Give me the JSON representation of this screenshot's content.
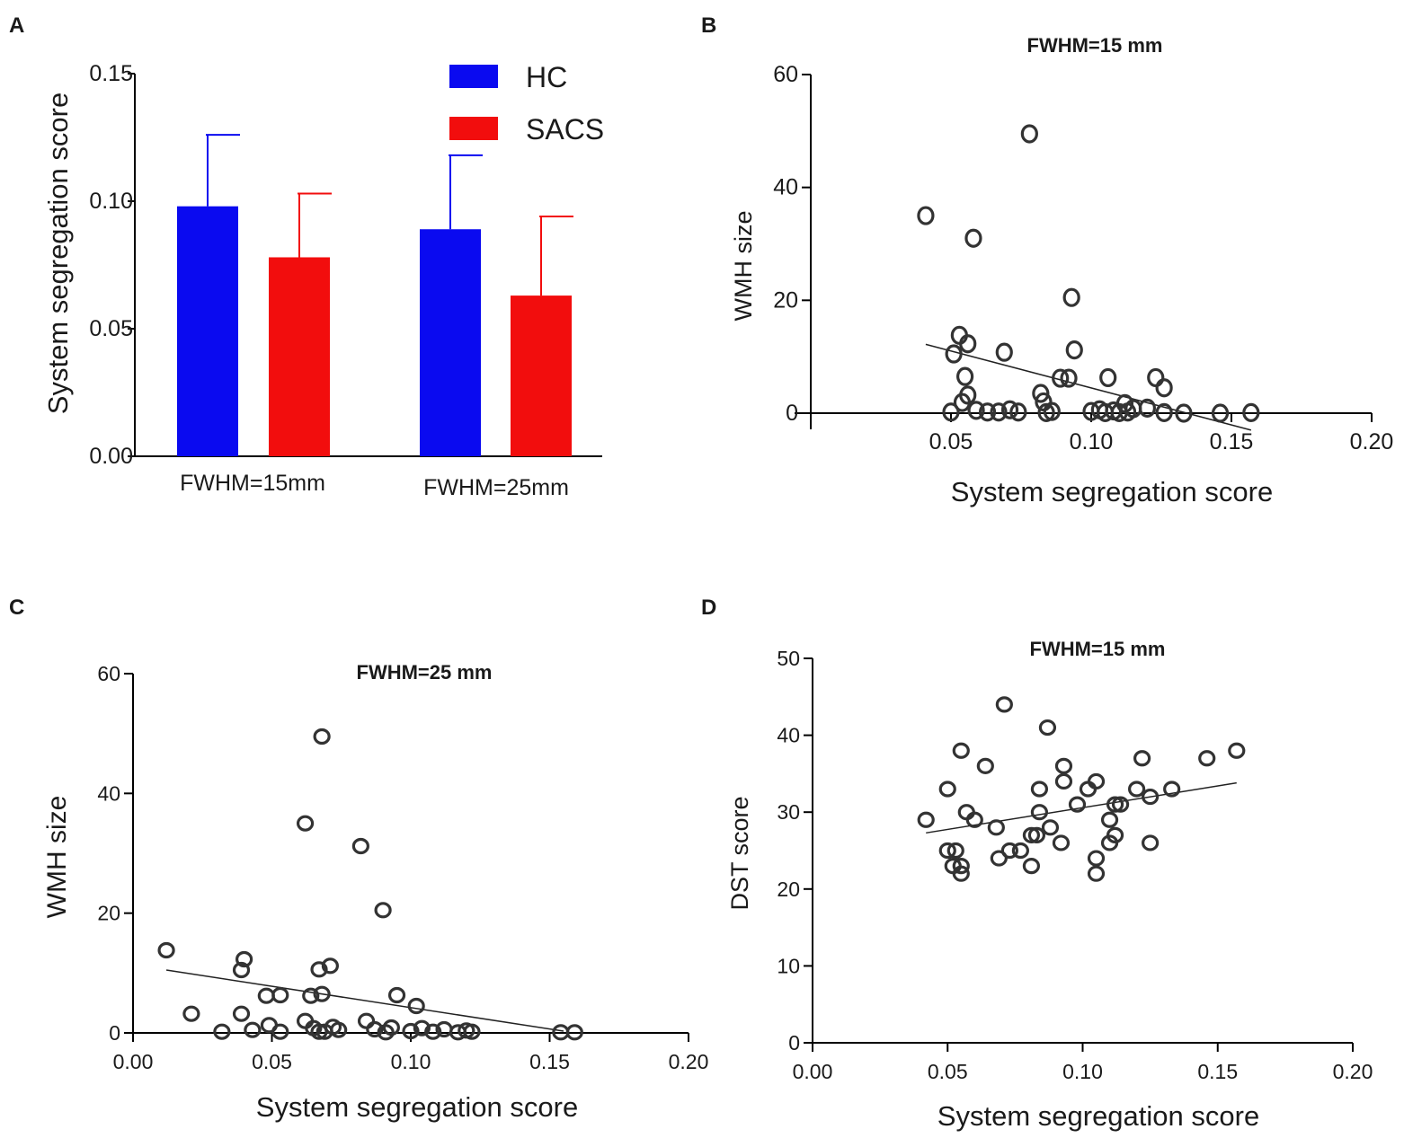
{
  "colors": {
    "hc": "#0a0af0",
    "sacs": "#f20d0d",
    "point_stroke": "#333333",
    "axis": "#000000"
  },
  "chart_data": [
    {
      "id": "A",
      "letter": "A",
      "type": "bar",
      "title": "",
      "categories": [
        "FWHM=15mm",
        "FWHM=25mm"
      ],
      "series": [
        {
          "name": "HC",
          "color": "#0a0af0",
          "values": [
            0.098,
            0.089
          ],
          "errors": [
            0.028,
            0.029
          ]
        },
        {
          "name": "SACS",
          "color": "#f20d0d",
          "values": [
            0.078,
            0.063
          ],
          "errors": [
            0.025,
            0.031
          ]
        }
      ],
      "xlabel": "",
      "ylabel": "System segregation score",
      "ylim": [
        0,
        0.15
      ],
      "yticks": [
        "0.00",
        "0.05",
        "0.10",
        "0.15"
      ],
      "legend": "top-right"
    },
    {
      "id": "B",
      "letter": "B",
      "type": "scatter",
      "title": "FWHM=15 mm",
      "xlabel": "System segregation score",
      "ylabel": "WMH size",
      "xlim": [
        0,
        0.2
      ],
      "ylim": [
        0,
        60
      ],
      "xticks": [
        "0.05",
        "0.10",
        "0.15",
        "0.20"
      ],
      "yticks": [
        "0",
        "20",
        "40",
        "60"
      ],
      "fit": {
        "x1": 0.041,
        "y1": 12.2,
        "x2": 0.157,
        "y2": -3.0
      },
      "points": [
        [
          0.078,
          49.5
        ],
        [
          0.041,
          35.0
        ],
        [
          0.058,
          31.0
        ],
        [
          0.093,
          20.5
        ],
        [
          0.053,
          13.8
        ],
        [
          0.056,
          12.3
        ],
        [
          0.051,
          10.5
        ],
        [
          0.069,
          10.8
        ],
        [
          0.094,
          11.2
        ],
        [
          0.055,
          6.5
        ],
        [
          0.089,
          6.2
        ],
        [
          0.092,
          6.2
        ],
        [
          0.106,
          6.3
        ],
        [
          0.123,
          6.3
        ],
        [
          0.126,
          4.5
        ],
        [
          0.056,
          3.2
        ],
        [
          0.054,
          1.9
        ],
        [
          0.082,
          3.5
        ],
        [
          0.083,
          2.0
        ],
        [
          0.05,
          0.2
        ],
        [
          0.059,
          0.5
        ],
        [
          0.063,
          0.2
        ],
        [
          0.067,
          0.2
        ],
        [
          0.071,
          0.6
        ],
        [
          0.074,
          0.2
        ],
        [
          0.084,
          0.1
        ],
        [
          0.086,
          0.3
        ],
        [
          0.1,
          0.3
        ],
        [
          0.103,
          0.6
        ],
        [
          0.105,
          0.1
        ],
        [
          0.108,
          0.4
        ],
        [
          0.11,
          0.1
        ],
        [
          0.112,
          1.7
        ],
        [
          0.113,
          0.2
        ],
        [
          0.115,
          0.8
        ],
        [
          0.12,
          0.9
        ],
        [
          0.126,
          0.1
        ],
        [
          0.133,
          0.0
        ],
        [
          0.146,
          0.0
        ],
        [
          0.157,
          0.1
        ]
      ]
    },
    {
      "id": "C",
      "letter": "C",
      "type": "scatter",
      "title": "FWHM=25 mm",
      "xlabel": "System segregation score",
      "ylabel": "WMH size",
      "xlim": [
        0,
        0.2
      ],
      "ylim": [
        0,
        60
      ],
      "xticks": [
        "0.00",
        "0.05",
        "0.10",
        "0.15",
        "0.20"
      ],
      "yticks": [
        "0",
        "20",
        "40",
        "60"
      ],
      "fit": {
        "x1": 0.012,
        "y1": 10.5,
        "x2": 0.155,
        "y2": 0.3
      },
      "points": [
        [
          0.068,
          49.5
        ],
        [
          0.062,
          35.0
        ],
        [
          0.082,
          31.2
        ],
        [
          0.09,
          20.5
        ],
        [
          0.012,
          13.8
        ],
        [
          0.04,
          12.3
        ],
        [
          0.039,
          10.5
        ],
        [
          0.067,
          10.6
        ],
        [
          0.071,
          11.2
        ],
        [
          0.048,
          6.2
        ],
        [
          0.053,
          6.3
        ],
        [
          0.064,
          6.2
        ],
        [
          0.068,
          6.5
        ],
        [
          0.095,
          6.3
        ],
        [
          0.102,
          4.5
        ],
        [
          0.021,
          3.2
        ],
        [
          0.039,
          3.2
        ],
        [
          0.062,
          2.0
        ],
        [
          0.084,
          2.0
        ],
        [
          0.032,
          0.2
        ],
        [
          0.043,
          0.5
        ],
        [
          0.049,
          1.3
        ],
        [
          0.053,
          0.2
        ],
        [
          0.065,
          0.8
        ],
        [
          0.067,
          0.2
        ],
        [
          0.069,
          0.2
        ],
        [
          0.072,
          1.0
        ],
        [
          0.074,
          0.5
        ],
        [
          0.087,
          0.6
        ],
        [
          0.091,
          0.1
        ],
        [
          0.093,
          0.9
        ],
        [
          0.1,
          0.3
        ],
        [
          0.104,
          0.8
        ],
        [
          0.108,
          0.2
        ],
        [
          0.112,
          0.6
        ],
        [
          0.117,
          0.1
        ],
        [
          0.12,
          0.4
        ],
        [
          0.122,
          0.2
        ],
        [
          0.154,
          0.1
        ],
        [
          0.159,
          0.1
        ]
      ]
    },
    {
      "id": "D",
      "letter": "D",
      "type": "scatter",
      "title": "FWHM=15 mm",
      "xlabel": "System segregation score",
      "ylabel": "DST score",
      "xlim": [
        0,
        0.2
      ],
      "ylim": [
        0,
        50
      ],
      "xticks": [
        "0.00",
        "0.05",
        "0.10",
        "0.15",
        "0.20"
      ],
      "yticks": [
        "0",
        "10",
        "20",
        "30",
        "40",
        "50"
      ],
      "fit": {
        "x1": 0.042,
        "y1": 27.3,
        "x2": 0.157,
        "y2": 33.8
      },
      "points": [
        [
          0.071,
          44
        ],
        [
          0.087,
          41
        ],
        [
          0.055,
          38
        ],
        [
          0.157,
          38
        ],
        [
          0.064,
          36
        ],
        [
          0.093,
          36
        ],
        [
          0.122,
          37
        ],
        [
          0.146,
          37
        ],
        [
          0.05,
          33
        ],
        [
          0.084,
          33
        ],
        [
          0.102,
          33
        ],
        [
          0.12,
          33
        ],
        [
          0.133,
          33
        ],
        [
          0.093,
          34
        ],
        [
          0.105,
          34
        ],
        [
          0.125,
          32
        ],
        [
          0.098,
          31
        ],
        [
          0.112,
          31
        ],
        [
          0.114,
          31
        ],
        [
          0.057,
          30
        ],
        [
          0.084,
          30
        ],
        [
          0.042,
          29
        ],
        [
          0.06,
          29
        ],
        [
          0.11,
          29
        ],
        [
          0.068,
          28
        ],
        [
          0.088,
          28
        ],
        [
          0.081,
          27
        ],
        [
          0.083,
          27
        ],
        [
          0.112,
          27
        ],
        [
          0.092,
          26
        ],
        [
          0.11,
          26
        ],
        [
          0.125,
          26
        ],
        [
          0.05,
          25
        ],
        [
          0.053,
          25
        ],
        [
          0.073,
          25
        ],
        [
          0.077,
          25
        ],
        [
          0.069,
          24
        ],
        [
          0.105,
          24
        ],
        [
          0.052,
          23
        ],
        [
          0.055,
          23
        ],
        [
          0.081,
          23
        ],
        [
          0.055,
          22
        ],
        [
          0.105,
          22
        ]
      ]
    }
  ]
}
